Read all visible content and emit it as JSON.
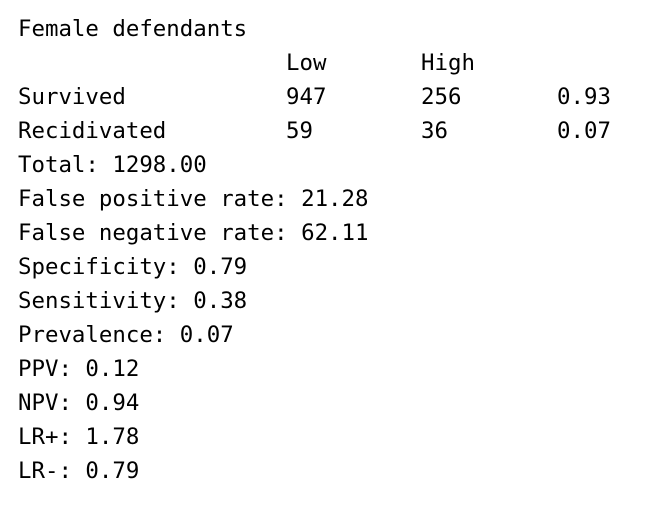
{
  "title": "Female defendants",
  "table": {
    "headers": [
      "Low",
      "High"
    ],
    "rows": [
      {
        "label": "Survived",
        "low": "947",
        "high": "256",
        "prop": "0.93"
      },
      {
        "label": "Recidivated",
        "low": "59",
        "high": "36",
        "prop": "0.07"
      }
    ]
  },
  "stats": [
    "Total: 1298.00",
    "False positive rate: 21.28",
    "False negative rate: 62.11",
    "Specificity: 0.79",
    "Sensitivity: 0.38",
    "Prevalence: 0.07",
    "PPV: 0.12",
    "NPV: 0.94",
    "LR+: 1.78",
    "LR-: 0.79"
  ]
}
